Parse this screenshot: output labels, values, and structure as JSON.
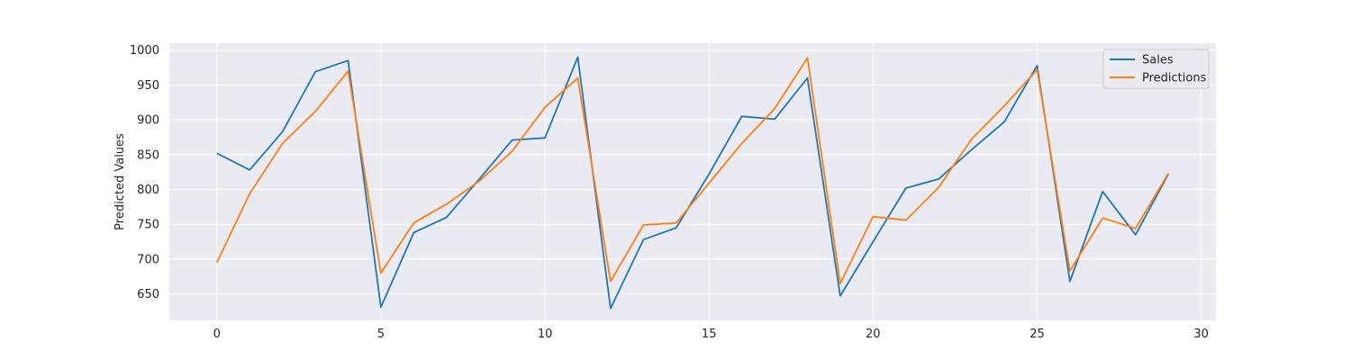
{
  "chart_data": {
    "type": "line",
    "title": "",
    "xlabel": "",
    "ylabel": "Predicted Values",
    "xlim": [
      -1.45,
      30.45
    ],
    "ylim": [
      612,
      1010
    ],
    "xticks": [
      0,
      5,
      10,
      15,
      20,
      25,
      30
    ],
    "yticks": [
      650,
      700,
      750,
      800,
      850,
      900,
      950,
      1000
    ],
    "grid": true,
    "legend_position": "top-right",
    "x": [
      0,
      1,
      2,
      3,
      4,
      5,
      6,
      7,
      8,
      9,
      10,
      11,
      12,
      13,
      14,
      15,
      16,
      17,
      18,
      19,
      20,
      21,
      22,
      23,
      24,
      25,
      26,
      27,
      28,
      29
    ],
    "series": [
      {
        "name": "Sales",
        "color": "#1f77b4",
        "values": [
          852,
          828,
          883,
          969,
          985,
          631,
          738,
          760,
          815,
          871,
          874,
          990,
          629,
          728,
          745,
          822,
          905,
          901,
          960,
          647,
          725,
          802,
          815,
          857,
          897,
          978,
          668,
          797,
          735,
          822
        ]
      },
      {
        "name": "Predictions",
        "color": "#ff7f0e",
        "values": [
          695,
          794,
          866,
          912,
          970,
          680,
          752,
          779,
          812,
          855,
          918,
          960,
          668,
          749,
          752,
          809,
          866,
          916,
          989,
          665,
          761,
          756,
          803,
          872,
          920,
          972,
          683,
          759,
          744,
          823
        ]
      }
    ]
  }
}
